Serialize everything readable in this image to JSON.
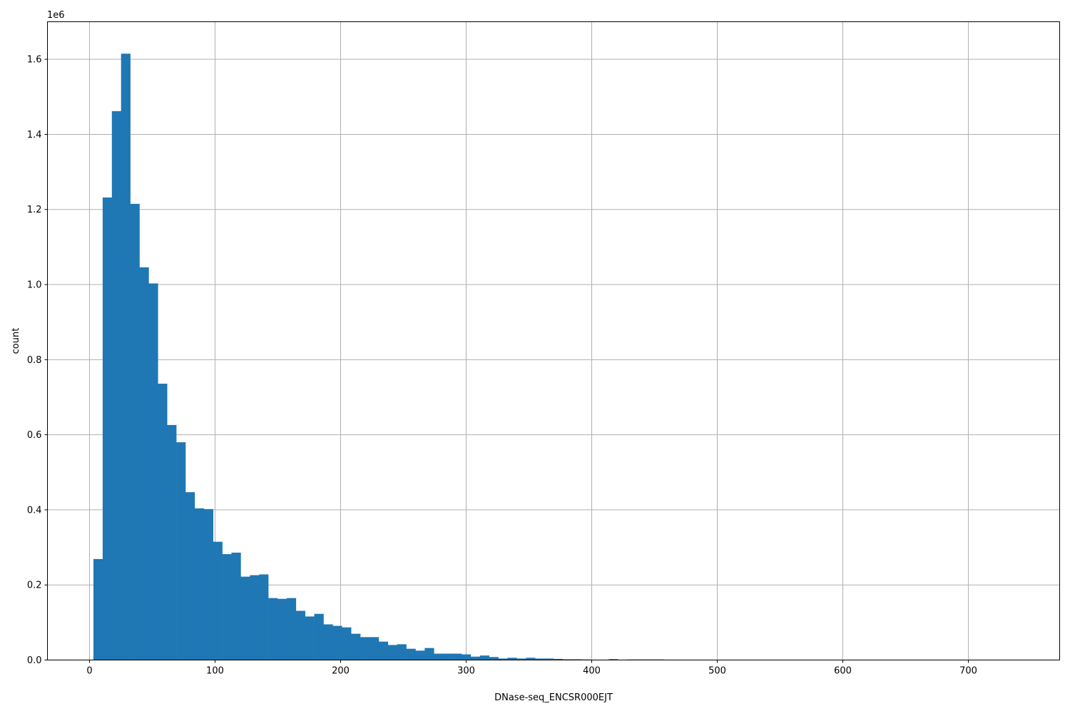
{
  "chart_data": {
    "type": "bar",
    "subtype": "histogram",
    "title": "",
    "xlabel": "DNase-seq_ENCSR000EJT",
    "ylabel": "count",
    "y_offset_label": "1e6",
    "xlim": [
      -33.5,
      772.7
    ],
    "ylim": [
      0,
      1700000.0
    ],
    "bin_range": [
      3.15,
      736
    ],
    "xticks": [
      0,
      100,
      200,
      300,
      400,
      500,
      600,
      700
    ],
    "yticks": [
      0,
      0.2,
      0.4,
      0.6,
      0.8,
      1.0,
      1.2,
      1.4,
      1.6
    ],
    "ytick_labels": [
      "0.0",
      "0.2",
      "0.4",
      "0.6",
      "0.8",
      "1.0",
      "1.2",
      "1.4",
      "1.6"
    ],
    "grid": true,
    "bar_color": "#1f77b4",
    "values": [
      269000,
      1232000,
      1462000,
      1615000,
      1215000,
      1046000,
      1003000,
      736000,
      626000,
      580000,
      447000,
      404000,
      402000,
      315000,
      282000,
      286000,
      222000,
      226000,
      228000,
      165000,
      163000,
      165000,
      131000,
      116000,
      123000,
      95000,
      91000,
      87000,
      70000,
      61000,
      61000,
      49000,
      40000,
      42000,
      30000,
      25000,
      32000,
      17000,
      17000,
      17000,
      15000,
      9000,
      12000,
      8000,
      4000,
      6000,
      4000,
      6000,
      4000,
      4000,
      3000,
      2000,
      2000,
      1500,
      1000,
      0,
      2500,
      0,
      1500,
      1500,
      1500,
      1500,
      0,
      0,
      0,
      0,
      0,
      0,
      0,
      0,
      0,
      0,
      0,
      0,
      0,
      0,
      0,
      0,
      0,
      0,
      0,
      0,
      0,
      0,
      0,
      0,
      0,
      0,
      0,
      0,
      0,
      0,
      0,
      0,
      0,
      0,
      0,
      0,
      0,
      0
    ]
  }
}
